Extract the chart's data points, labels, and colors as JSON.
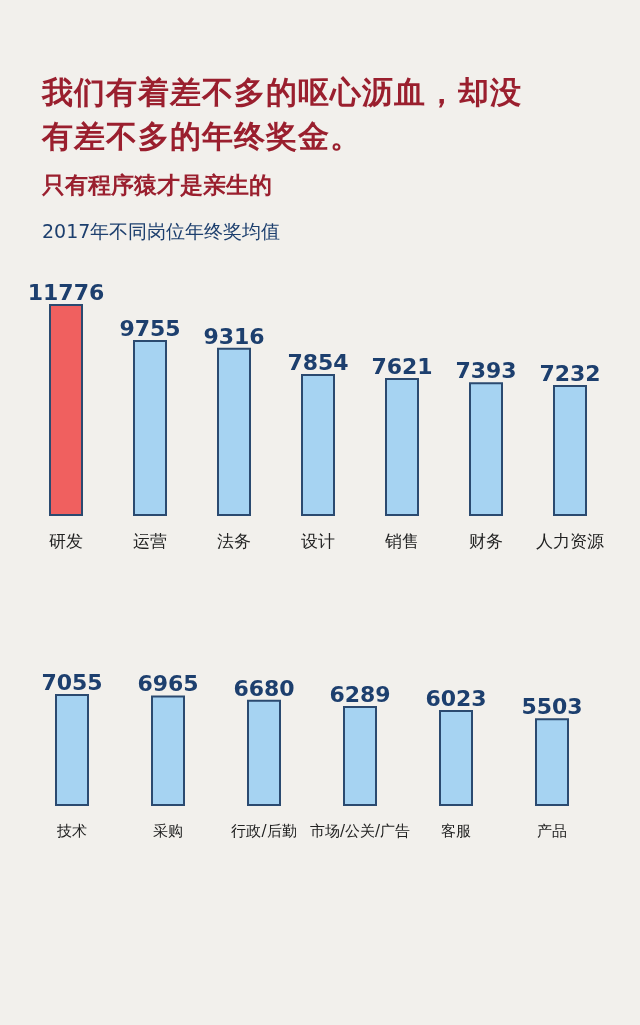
{
  "chart_data": [
    {
      "type": "bar",
      "title": "我们有着差不多的呕心沥血，却没有差不多的年终奖金。",
      "subtitle": "只有程序猿才是亲生的",
      "annotations": [
        "2017年不同岗位年终奖均值"
      ],
      "categories": [
        "研发",
        "运营",
        "法务",
        "设计",
        "销售",
        "财务",
        "人力资源"
      ],
      "values": [
        11776,
        9755,
        9316,
        7854,
        7621,
        7393,
        7232
      ],
      "colors": [
        "#f0605f",
        "#a6d3f2",
        "#a6d3f2",
        "#a6d3f2",
        "#a6d3f2",
        "#a6d3f2",
        "#a6d3f2"
      ],
      "data_labels": true
    },
    {
      "type": "bar",
      "categories": [
        "技术",
        "采购",
        "行政/后勤",
        "市场/公关/广告",
        "客服",
        "产品"
      ],
      "values": [
        7055,
        6965,
        6680,
        6289,
        6023,
        5503
      ],
      "colors": [
        "#a6d3f2",
        "#a6d3f2",
        "#a6d3f2",
        "#a6d3f2",
        "#a6d3f2",
        "#a6d3f2"
      ],
      "data_labels": true
    }
  ]
}
